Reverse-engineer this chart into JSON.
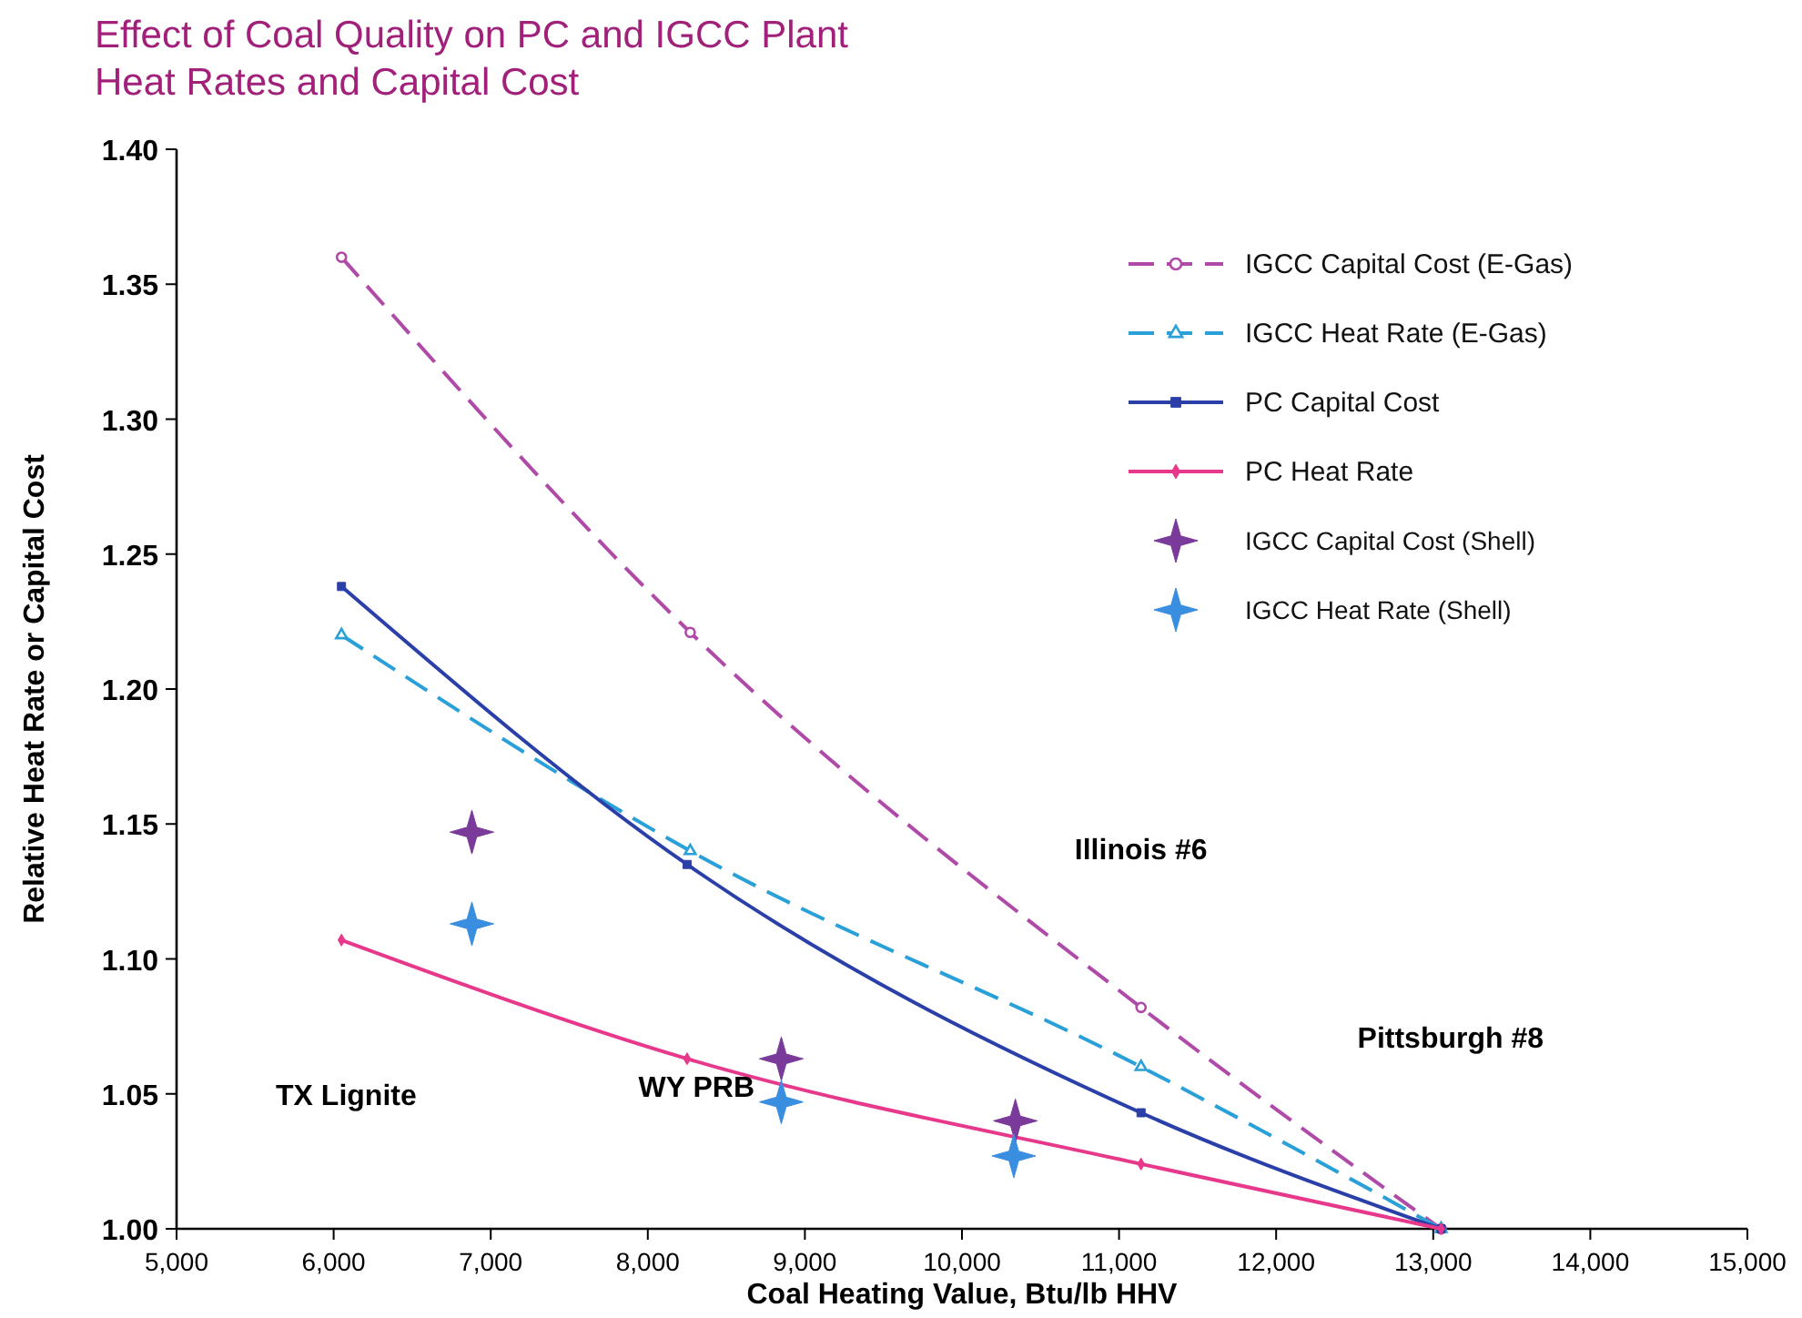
{
  "chart_data": {
    "type": "line",
    "title": "Effect of Coal Quality on PC and IGCC Plant\nHeat Rates and Capital Cost",
    "xlabel": "Coal Heating Value, Btu/lb HHV",
    "ylabel": "Relative Heat Rate or Capital Cost",
    "xlim": [
      5000,
      15000
    ],
    "ylim": [
      1.0,
      1.4
    ],
    "xticks": [
      {
        "value": 5000,
        "label": "5,000"
      },
      {
        "value": 6000,
        "label": "6,000"
      },
      {
        "value": 7000,
        "label": "7,000"
      },
      {
        "value": 8000,
        "label": "8,000"
      },
      {
        "value": 9000,
        "label": "9,000"
      },
      {
        "value": 10000,
        "label": "10,000"
      },
      {
        "value": 11000,
        "label": "11,000"
      },
      {
        "value": 12000,
        "label": "12,000"
      },
      {
        "value": 13000,
        "label": "13,000"
      },
      {
        "value": 14000,
        "label": "14,000"
      },
      {
        "value": 15000,
        "label": "15,000"
      }
    ],
    "yticks": [
      {
        "value": 1.0,
        "label": "1.00"
      },
      {
        "value": 1.05,
        "label": "1.05"
      },
      {
        "value": 1.1,
        "label": "1.10"
      },
      {
        "value": 1.15,
        "label": "1.15"
      },
      {
        "value": 1.2,
        "label": "1.20"
      },
      {
        "value": 1.25,
        "label": "1.25"
      },
      {
        "value": 1.3,
        "label": "1.30"
      },
      {
        "value": 1.35,
        "label": "1.35"
      },
      {
        "value": 1.4,
        "label": "1.40"
      }
    ],
    "grid": false,
    "legend": "top right",
    "series": [
      {
        "name": "IGCC Capital Cost (E-Gas)",
        "color": "#b04aa8",
        "marker": "circle",
        "line_style": "dashed",
        "x": [
          6050,
          8270,
          11140,
          13050
        ],
        "values": [
          1.36,
          1.221,
          1.082,
          1.0
        ]
      },
      {
        "name": "IGCC Heat Rate (E-Gas)",
        "color": "#2aa0d8",
        "marker": "triangle",
        "line_style": "dashed",
        "x": [
          6050,
          8270,
          11140,
          13050
        ],
        "values": [
          1.22,
          1.14,
          1.06,
          1.0
        ]
      },
      {
        "name": "PC Capital Cost",
        "color": "#2b3fa8",
        "marker": "square",
        "line_style": "solid",
        "x": [
          6050,
          8250,
          11140,
          13050
        ],
        "values": [
          1.238,
          1.135,
          1.043,
          1.0
        ]
      },
      {
        "name": "PC Heat Rate",
        "color": "#e8388c",
        "marker": "diamond",
        "line_style": "solid",
        "x": [
          6050,
          8250,
          11140,
          13050
        ],
        "values": [
          1.107,
          1.063,
          1.024,
          1.0
        ]
      },
      {
        "name": "IGCC Capital Cost (Shell)",
        "type": "scatter",
        "color": "#7a3a9a",
        "marker": "star",
        "x": [
          6880,
          8850,
          10340
        ],
        "values": [
          1.147,
          1.063,
          1.04
        ]
      },
      {
        "name": "IGCC Heat Rate (Shell)",
        "type": "scatter",
        "color": "#3a8ee0",
        "marker": "star",
        "x": [
          6880,
          8850,
          10330
        ],
        "values": [
          1.113,
          1.047,
          1.027
        ]
      }
    ],
    "annotations": [
      "TX Lignite",
      "WY PRB",
      "Illinois #6",
      "Pittsburgh #8"
    ]
  }
}
